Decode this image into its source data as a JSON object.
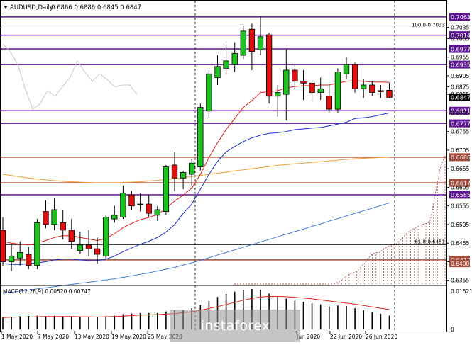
{
  "chart_data": {
    "type": "candlestick",
    "header": {
      "symbol": "AUDUSD,Daily",
      "ohlc": "0.6866 0.6886 0.6845 0.6847"
    },
    "y_ticks": [
      "0.7035",
      "0.7005",
      "0.6955",
      "0.6905",
      "0.6875",
      "0.6855",
      "0.6805",
      "0.6755",
      "0.6705",
      "0.6655",
      "0.6605",
      "0.6555",
      "0.6505",
      "0.6455",
      "0.6405",
      "0.6355"
    ],
    "ylim": [
      0.6345,
      0.7078
    ],
    "x_labels": [
      "1 May 2020",
      "7 May 2020",
      "13 May 2020",
      "19 May 2020",
      "25 May 2020",
      "Jun 2020",
      "22 Jun 2020",
      "26 Jun 2020"
    ],
    "candles": [
      {
        "o": 0.649,
        "h": 0.6525,
        "l": 0.6395,
        "c": 0.6405
      },
      {
        "o": 0.6405,
        "h": 0.645,
        "l": 0.638,
        "c": 0.642
      },
      {
        "o": 0.6415,
        "h": 0.646,
        "l": 0.6395,
        "c": 0.643
      },
      {
        "o": 0.6425,
        "h": 0.6445,
        "l": 0.6385,
        "c": 0.6395
      },
      {
        "o": 0.6395,
        "h": 0.652,
        "l": 0.6385,
        "c": 0.651
      },
      {
        "o": 0.654,
        "h": 0.657,
        "l": 0.6495,
        "c": 0.6505
      },
      {
        "o": 0.6505,
        "h": 0.6575,
        "l": 0.649,
        "c": 0.6545
      },
      {
        "o": 0.651,
        "h": 0.6545,
        "l": 0.6465,
        "c": 0.649
      },
      {
        "o": 0.649,
        "h": 0.652,
        "l": 0.644,
        "c": 0.646
      },
      {
        "o": 0.6435,
        "h": 0.6485,
        "l": 0.6425,
        "c": 0.645
      },
      {
        "o": 0.645,
        "h": 0.649,
        "l": 0.642,
        "c": 0.644
      },
      {
        "o": 0.644,
        "h": 0.647,
        "l": 0.64,
        "c": 0.6425
      },
      {
        "o": 0.642,
        "h": 0.653,
        "l": 0.641,
        "c": 0.6525
      },
      {
        "o": 0.652,
        "h": 0.6555,
        "l": 0.651,
        "c": 0.653
      },
      {
        "o": 0.6525,
        "h": 0.661,
        "l": 0.652,
        "c": 0.659
      },
      {
        "o": 0.6585,
        "h": 0.6595,
        "l": 0.6545,
        "c": 0.6555
      },
      {
        "o": 0.656,
        "h": 0.659,
        "l": 0.654,
        "c": 0.656
      },
      {
        "o": 0.656,
        "h": 0.6585,
        "l": 0.6525,
        "c": 0.6535
      },
      {
        "o": 0.653,
        "h": 0.6555,
        "l": 0.6515,
        "c": 0.6545
      },
      {
        "o": 0.654,
        "h": 0.6665,
        "l": 0.653,
        "c": 0.666
      },
      {
        "o": 0.6665,
        "h": 0.67,
        "l": 0.6595,
        "c": 0.663
      },
      {
        "o": 0.663,
        "h": 0.665,
        "l": 0.66,
        "c": 0.6645
      },
      {
        "o": 0.664,
        "h": 0.668,
        "l": 0.661,
        "c": 0.667
      },
      {
        "o": 0.666,
        "h": 0.683,
        "l": 0.665,
        "c": 0.682
      },
      {
        "o": 0.681,
        "h": 0.692,
        "l": 0.679,
        "c": 0.691
      },
      {
        "o": 0.69,
        "h": 0.696,
        "l": 0.688,
        "c": 0.693
      },
      {
        "o": 0.6925,
        "h": 0.699,
        "l": 0.691,
        "c": 0.6945
      },
      {
        "o": 0.6935,
        "h": 0.6995,
        "l": 0.6915,
        "c": 0.6965
      },
      {
        "o": 0.696,
        "h": 0.704,
        "l": 0.695,
        "c": 0.7025
      },
      {
        "o": 0.703,
        "h": 0.7045,
        "l": 0.692,
        "c": 0.697
      },
      {
        "o": 0.6975,
        "h": 0.7065,
        "l": 0.696,
        "c": 0.701
      },
      {
        "o": 0.7015,
        "h": 0.702,
        "l": 0.683,
        "c": 0.685
      },
      {
        "o": 0.685,
        "h": 0.688,
        "l": 0.6795,
        "c": 0.686
      },
      {
        "o": 0.6855,
        "h": 0.6975,
        "l": 0.6785,
        "c": 0.692
      },
      {
        "o": 0.692,
        "h": 0.6935,
        "l": 0.687,
        "c": 0.689
      },
      {
        "o": 0.689,
        "h": 0.692,
        "l": 0.684,
        "c": 0.6885
      },
      {
        "o": 0.6885,
        "h": 0.6895,
        "l": 0.6835,
        "c": 0.686
      },
      {
        "o": 0.686,
        "h": 0.69,
        "l": 0.684,
        "c": 0.687
      },
      {
        "o": 0.685,
        "h": 0.688,
        "l": 0.6805,
        "c": 0.6815
      },
      {
        "o": 0.6815,
        "h": 0.6925,
        "l": 0.6805,
        "c": 0.6915
      },
      {
        "o": 0.691,
        "h": 0.6955,
        "l": 0.6895,
        "c": 0.6935
      },
      {
        "o": 0.6935,
        "h": 0.694,
        "l": 0.686,
        "c": 0.687
      },
      {
        "o": 0.687,
        "h": 0.6895,
        "l": 0.6845,
        "c": 0.688
      },
      {
        "o": 0.688,
        "h": 0.689,
        "l": 0.685,
        "c": 0.686
      },
      {
        "o": 0.6865,
        "h": 0.688,
        "l": 0.6845,
        "c": 0.6862
      },
      {
        "o": 0.6866,
        "h": 0.6886,
        "l": 0.6845,
        "c": 0.6847
      }
    ],
    "horizontal_levels": [
      {
        "label": "0.7063",
        "value": 0.7063,
        "color": "#5c1590",
        "fill": "#5c1590"
      },
      {
        "label": "0.7014",
        "value": 0.7014,
        "color": "#5c1590",
        "fill": "#5c1590"
      },
      {
        "label": "0.6977",
        "value": 0.6977,
        "color": "#5c1590",
        "fill": "#5c1590"
      },
      {
        "label": "0.6935",
        "value": 0.6935,
        "color": "#5c1590",
        "fill": "#5c1590"
      },
      {
        "label": "0.6811",
        "value": 0.6811,
        "color": "#5c1590",
        "fill": "#5c1590"
      },
      {
        "label": "0.6777",
        "value": 0.6777,
        "color": "#5c1590",
        "fill": "#5c1590"
      },
      {
        "label": "0.6686",
        "value": 0.6686,
        "color": "#a24b3a",
        "fill": "#a24b3a"
      },
      {
        "label": "0.6617",
        "value": 0.6617,
        "color": "#a24b3a",
        "fill": "#a24b3a"
      },
      {
        "label": "0.6585",
        "value": 0.6585,
        "color": "#5c1590",
        "fill": "#5c1590"
      },
      {
        "label": "0.6410",
        "value": 0.641,
        "color": "#a24b3a",
        "fill": "#a24b3a"
      }
    ],
    "current_price": {
      "label": "0.6847",
      "value": 0.6847,
      "fill": "#000000"
    },
    "extra_price_tag": {
      "label": "0.6400",
      "value": 0.64,
      "fill": "#a24b3a"
    },
    "fibo_top": {
      "label": "100.0-0.7033",
      "value": 0.7033
    },
    "fibo_618": {
      "label": "61.8-0.6451",
      "value": 0.6451
    },
    "ma_red": [
      0.646,
      0.6455,
      0.6452,
      0.645,
      0.6455,
      0.6462,
      0.647,
      0.6475,
      0.6475,
      0.647,
      0.6466,
      0.6462,
      0.6468,
      0.648,
      0.6497,
      0.6508,
      0.6518,
      0.6524,
      0.6532,
      0.6548,
      0.6568,
      0.6584,
      0.6603,
      0.664,
      0.6685,
      0.6725,
      0.676,
      0.679,
      0.682,
      0.6838,
      0.686,
      0.6862,
      0.6865,
      0.6872,
      0.6876,
      0.6878,
      0.6878,
      0.688,
      0.688,
      0.6885,
      0.689,
      0.6892,
      0.689,
      0.6888,
      0.6888,
      0.6887
    ],
    "ma_blue": [
      0.64,
      0.6398,
      0.6398,
      0.64,
      0.6402,
      0.6405,
      0.641,
      0.6412,
      0.6412,
      0.641,
      0.6408,
      0.6408,
      0.6412,
      0.642,
      0.6432,
      0.6442,
      0.6452,
      0.646,
      0.647,
      0.6485,
      0.6505,
      0.6535,
      0.656,
      0.66,
      0.664,
      0.6675,
      0.67,
      0.6715,
      0.6728,
      0.6738,
      0.6745,
      0.675,
      0.6752,
      0.6755,
      0.676,
      0.6762,
      0.6764,
      0.6766,
      0.677,
      0.6775,
      0.678,
      0.679,
      0.6792,
      0.6795,
      0.68,
      0.6805
    ],
    "ma_orange": [
      0.664,
      0.6637,
      0.6633,
      0.663,
      0.6627,
      0.6625,
      0.6623,
      0.6621,
      0.662,
      0.6619,
      0.6618,
      0.6617,
      0.6617,
      0.6617,
      0.6618,
      0.6619,
      0.662,
      0.6622,
      0.6624,
      0.6626,
      0.6628,
      0.6631,
      0.6634,
      0.6637,
      0.664,
      0.6643,
      0.6646,
      0.6649,
      0.6652,
      0.6655,
      0.6658,
      0.6661,
      0.6664,
      0.6666,
      0.6668,
      0.667,
      0.6672,
      0.6674,
      0.6676,
      0.6678,
      0.668,
      0.6682,
      0.6683,
      0.6684,
      0.6685,
      0.6686
    ],
    "ma_slow_blue": [
      0.632,
      0.6323,
      0.6326,
      0.6329,
      0.6332,
      0.6335,
      0.6338,
      0.6341,
      0.6344,
      0.6347,
      0.635,
      0.6353,
      0.6356,
      0.6359,
      0.6363,
      0.6367,
      0.6371,
      0.6375,
      0.638,
      0.6385,
      0.639,
      0.6396,
      0.6402,
      0.6409,
      0.6416,
      0.6423,
      0.643,
      0.6437,
      0.6444,
      0.6451,
      0.6458,
      0.6465,
      0.6472,
      0.6479,
      0.6486,
      0.6493,
      0.65,
      0.6507,
      0.6514,
      0.6521,
      0.6528,
      0.6535,
      0.6542,
      0.6549,
      0.6556,
      0.6563
    ],
    "envelope_gray": [
      0.699,
      0.697,
      0.6935,
      0.687,
      0.6815,
      0.683,
      0.6865,
      0.685,
      0.6875,
      0.69,
      0.6945,
      0.6915,
      0.689,
      0.691,
      0.6895,
      0.6875,
      0.688,
      0.688,
      0.6855
    ],
    "macd": {
      "label": "MACD(12,26,9) 0.00520 0.00747",
      "y_ticks": [
        "0.01521",
        "0"
      ],
      "range": [
        -0.0005,
        0.016
      ],
      "histogram": [
        0.0045,
        0.0048,
        0.005,
        0.0051,
        0.0052,
        0.005,
        0.0052,
        0.005,
        0.0049,
        0.0047,
        0.0046,
        0.0046,
        0.005,
        0.0052,
        0.0058,
        0.006,
        0.0062,
        0.0062,
        0.0062,
        0.0068,
        0.0072,
        0.0074,
        0.008,
        0.0092,
        0.0108,
        0.0122,
        0.0134,
        0.0142,
        0.015,
        0.0152,
        0.015,
        0.0135,
        0.0122,
        0.0116,
        0.0108,
        0.0104,
        0.0098,
        0.0094,
        0.0086,
        0.009,
        0.0088,
        0.008,
        0.0072,
        0.0066,
        0.0059,
        0.0052
      ],
      "signal": [
        0.0045,
        0.0046,
        0.0047,
        0.0047,
        0.0048,
        0.0049,
        0.0049,
        0.0049,
        0.0049,
        0.0048,
        0.0048,
        0.0047,
        0.0048,
        0.0049,
        0.005,
        0.0052,
        0.0054,
        0.0055,
        0.0056,
        0.0058,
        0.006,
        0.0063,
        0.0067,
        0.0072,
        0.0079,
        0.0086,
        0.0094,
        0.0102,
        0.011,
        0.0117,
        0.0122,
        0.0124,
        0.0124,
        0.0123,
        0.0121,
        0.0118,
        0.0115,
        0.0111,
        0.0107,
        0.0103,
        0.0099,
        0.0095,
        0.009,
        0.0085,
        0.008,
        0.0075
      ]
    },
    "cloud_levels": [
      0.6345,
      0.6345,
      0.6345,
      0.6345,
      0.6345,
      0.6345,
      0.6345,
      0.6345,
      0.6345,
      0.6345,
      0.6345,
      0.6345,
      0.6345,
      0.6345,
      0.6345,
      0.6345,
      0.6345,
      0.6345,
      0.6345,
      0.6345,
      0.6345,
      0.6345,
      0.6345,
      0.6345,
      0.6345,
      0.6345,
      0.6345,
      0.635,
      0.6355,
      0.6365,
      0.6372,
      0.6375,
      0.638,
      0.639,
      0.64,
      0.6415,
      0.6425,
      0.643,
      0.643,
      0.644,
      0.6445,
      0.645,
      0.645,
      0.646,
      0.647,
      0.648,
      0.649,
      0.6495,
      0.65,
      0.6505,
      0.6508,
      0.651,
      0.656,
      0.662,
      0.6665,
      0.669
    ],
    "watermark": "instaforex"
  }
}
